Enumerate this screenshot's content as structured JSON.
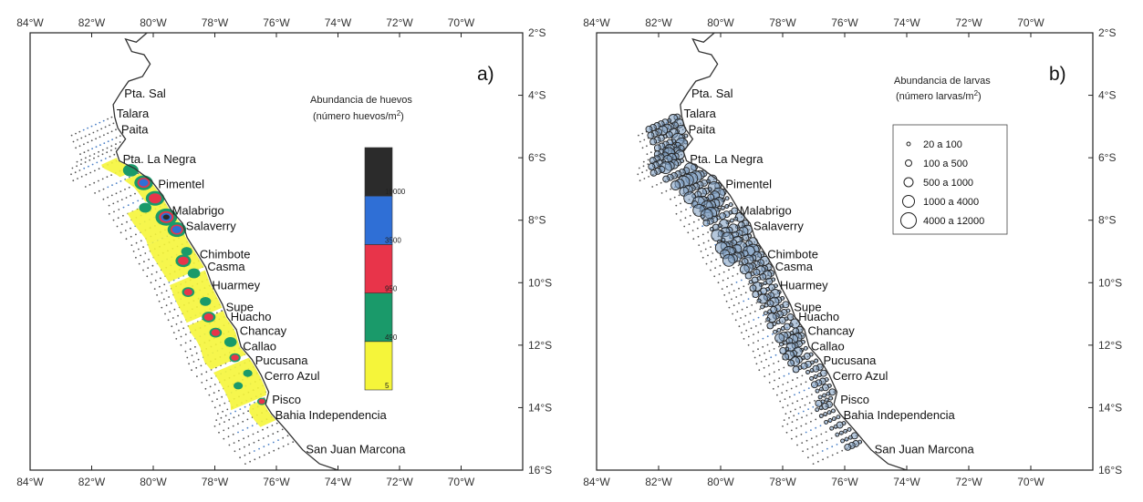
{
  "lon_ticks": [
    "84°W",
    "82°W",
    "80°W",
    "78°W",
    "76°W",
    "74°W",
    "72°W",
    "70°W"
  ],
  "lat_ticks": [
    "2°S",
    "4°S",
    "6°S",
    "8°S",
    "10°S",
    "12°S",
    "14°S",
    "16°S"
  ],
  "ports": [
    {
      "name": "Pta. Sal",
      "lon": -81.0,
      "lat": -3.95
    },
    {
      "name": "Talara",
      "lon": -81.25,
      "lat": -4.6
    },
    {
      "name": "Paita",
      "lon": -81.1,
      "lat": -5.1
    },
    {
      "name": "Pta. La Negra",
      "lon": -81.05,
      "lat": -6.05
    },
    {
      "name": "Pimentel",
      "lon": -79.9,
      "lat": -6.85
    },
    {
      "name": "Malabrigo",
      "lon": -79.45,
      "lat": -7.7
    },
    {
      "name": "Salaverry",
      "lon": -79.0,
      "lat": -8.2
    },
    {
      "name": "Chimbote",
      "lon": -78.55,
      "lat": -9.1
    },
    {
      "name": "Casma",
      "lon": -78.3,
      "lat": -9.5
    },
    {
      "name": "Huarmey",
      "lon": -78.15,
      "lat": -10.1
    },
    {
      "name": "Supe",
      "lon": -77.7,
      "lat": -10.8
    },
    {
      "name": "Huacho",
      "lon": -77.55,
      "lat": -11.1
    },
    {
      "name": "Chancay",
      "lon": -77.25,
      "lat": -11.55
    },
    {
      "name": "Callao",
      "lon": -77.15,
      "lat": -12.05
    },
    {
      "name": "Pucusana",
      "lon": -76.75,
      "lat": -12.5
    },
    {
      "name": "Cerro Azul",
      "lon": -76.45,
      "lat": -13.0
    },
    {
      "name": "Pisco",
      "lon": -76.2,
      "lat": -13.75
    },
    {
      "name": "Bahia Independencia",
      "lon": -76.1,
      "lat": -14.25
    },
    {
      "name": "San Juan Marcona",
      "lon": -75.1,
      "lat": -15.35
    }
  ],
  "panel_a": {
    "label": "a)",
    "legend_title_1": "Abundancia de huevos",
    "legend_title_2": "(número huevos/m",
    "legend_title_sup": "2",
    "legend_title_end": ")",
    "colorbar": [
      {
        "label": "5",
        "color": "#f5f53a"
      },
      {
        "label": "490",
        "color": "#1a9a6a"
      },
      {
        "label": "950",
        "color": "#e8344a"
      },
      {
        "label": "3500",
        "color": "#2f6fd6"
      },
      {
        "label": "10000",
        "color": "#2b2b2b"
      }
    ]
  },
  "panel_b": {
    "label": "b)",
    "legend_title_1": "Abundancia de larvas",
    "legend_title_2": "(número larvas/m",
    "legend_title_sup": "2",
    "legend_title_end": ")",
    "classes": [
      {
        "label": "20  a 100",
        "size": 1
      },
      {
        "label": "100  a 500",
        "size": 2
      },
      {
        "label": "500  a 1000",
        "size": 3
      },
      {
        "label": "1000  a 4000",
        "size": 4
      },
      {
        "label": "4000  a 12000",
        "size": 5
      }
    ]
  },
  "colors": {
    "coast": "#333333",
    "frame": "#222222",
    "station": "#4a7fc6",
    "circle_fill": "#7a9bbf",
    "circle_stroke": "#222222"
  }
}
